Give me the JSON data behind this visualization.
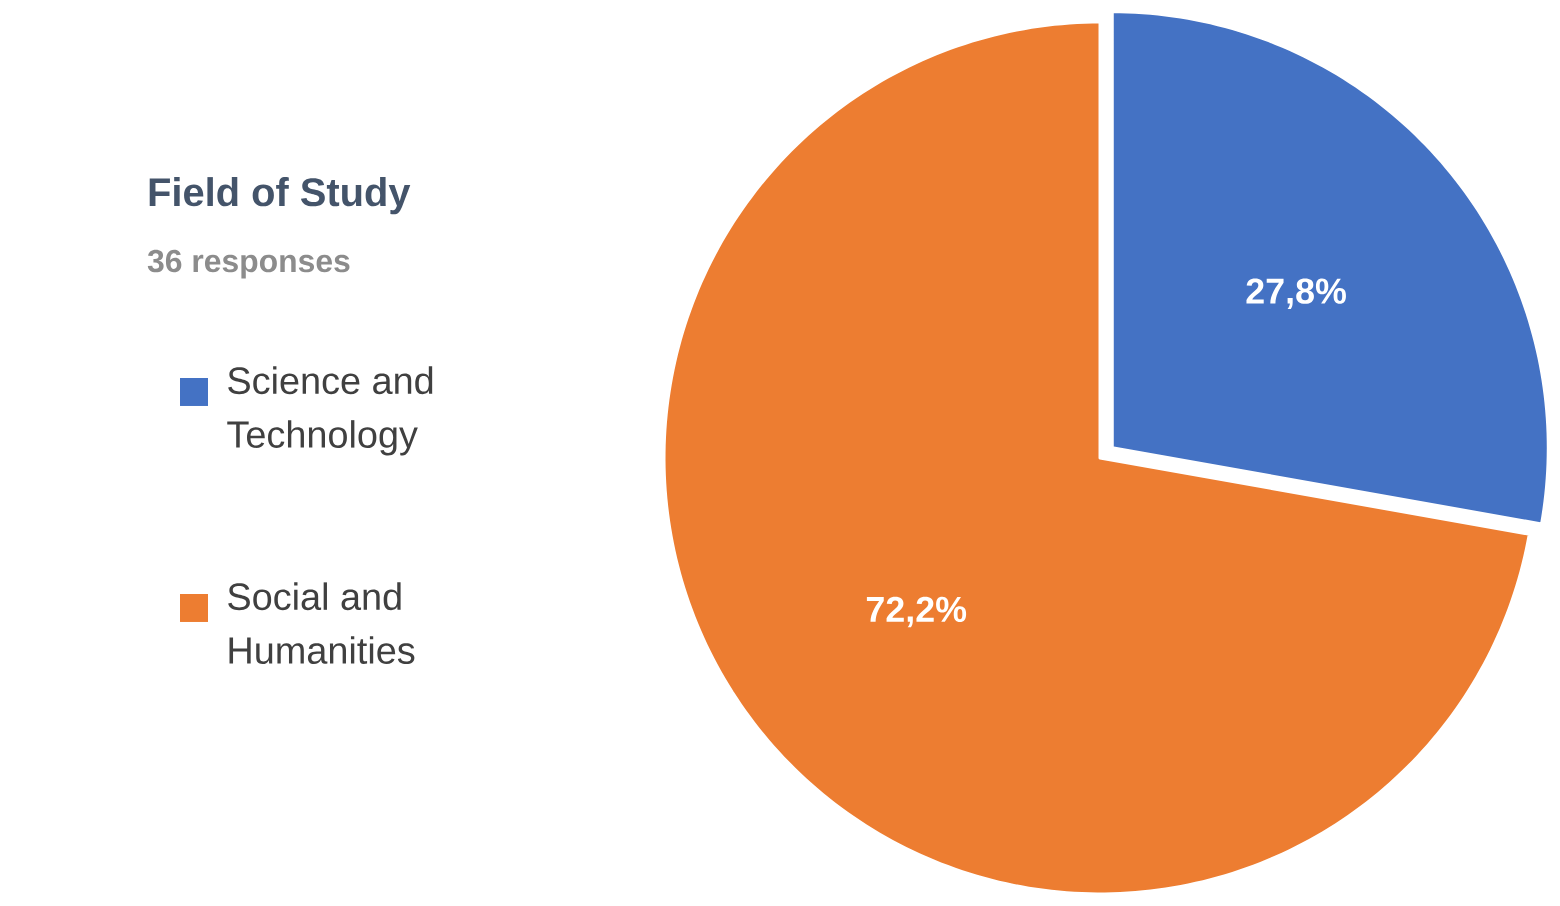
{
  "chart_data": {
    "type": "pie",
    "title": "Field of Study",
    "subtitle": "36 responses",
    "categories": [
      "Science and Technology",
      "Social and Humanities"
    ],
    "values": [
      27.8,
      72.2
    ],
    "colors": [
      "#4472c4",
      "#ed7d31"
    ],
    "value_labels": [
      "27,8%",
      "72,2%"
    ],
    "legend": "left"
  }
}
